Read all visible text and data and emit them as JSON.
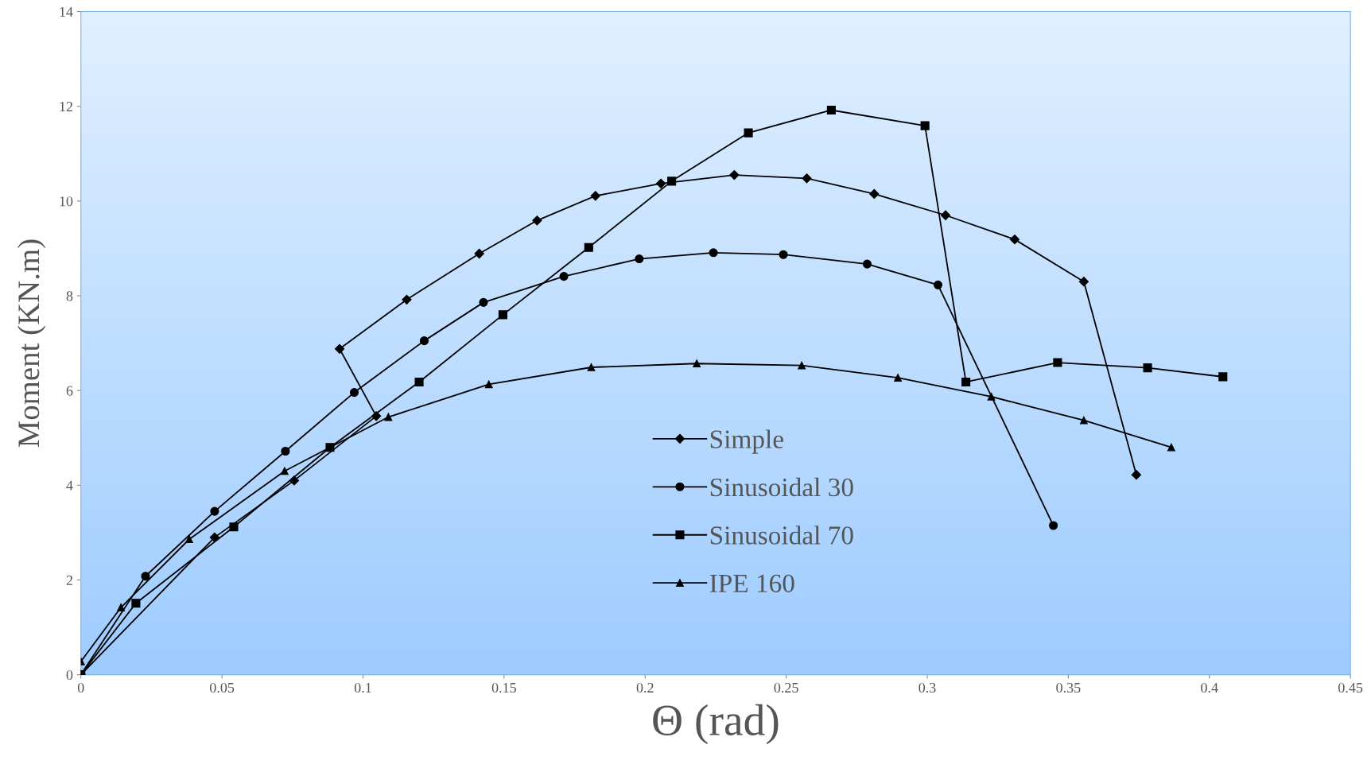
{
  "chart_data": {
    "type": "line",
    "xlabel": "Θ (rad)",
    "ylabel": "Moment (KN.m)",
    "xlim": [
      0,
      0.45
    ],
    "xticks": [
      0,
      0.05,
      0.1,
      0.15,
      0.2,
      0.25,
      0.3,
      0.35,
      0.4,
      0.45
    ],
    "ylim": [
      0,
      14
    ],
    "yticks": [
      0,
      2,
      4,
      6,
      8,
      10,
      12,
      14
    ],
    "grid": false,
    "legend": "bottom",
    "line_style": "solid",
    "series": [
      {
        "name": "Simple",
        "color": "#000000",
        "marker": "diamond",
        "x": [
          0,
          0.0474,
          0.0756,
          0.1047,
          0.0917,
          0.1155,
          0.1412,
          0.1617,
          0.1824,
          0.2056,
          0.2316,
          0.2573,
          0.2812,
          0.3065,
          0.331,
          0.3555,
          0.3741
        ],
        "values": [
          0,
          2.9,
          4.1,
          5.46,
          6.88,
          7.92,
          8.89,
          9.59,
          10.11,
          10.37,
          10.55,
          10.48,
          10.15,
          9.7,
          9.19,
          8.3,
          4.22
        ]
      },
      {
        "name": "Sinusoidal 30",
        "color": "#000000",
        "marker": "circle",
        "x": [
          0,
          0.0229,
          0.0474,
          0.0725,
          0.0969,
          0.1217,
          0.1427,
          0.1712,
          0.1979,
          0.2242,
          0.249,
          0.2787,
          0.3038,
          0.3447
        ],
        "values": [
          0,
          2.08,
          3.45,
          4.72,
          5.96,
          7.05,
          7.86,
          8.41,
          8.78,
          8.91,
          8.87,
          8.67,
          8.23,
          3.15
        ]
      },
      {
        "name": "Sinusoidal 70",
        "color": "#000000",
        "marker": "square",
        "x": [
          0,
          0.0195,
          0.0542,
          0.0883,
          0.1199,
          0.1496,
          0.18,
          0.2094,
          0.2366,
          0.266,
          0.2992,
          0.3137,
          0.3462,
          0.3781,
          0.4048
        ],
        "values": [
          0,
          1.51,
          3.12,
          4.8,
          6.18,
          7.6,
          9.02,
          10.42,
          11.44,
          11.92,
          11.59,
          6.18,
          6.59,
          6.48,
          6.29
        ]
      },
      {
        "name": "IPE 160",
        "color": "#000000",
        "marker": "triangle",
        "x": [
          0,
          0.0142,
          0.0384,
          0.0722,
          0.109,
          0.1446,
          0.1809,
          0.2183,
          0.2555,
          0.2896,
          0.3227,
          0.3555,
          0.3865
        ],
        "values": [
          0.28,
          1.42,
          2.86,
          4.3,
          5.44,
          6.13,
          6.49,
          6.57,
          6.53,
          6.27,
          5.87,
          5.37,
          4.8
        ]
      }
    ]
  }
}
